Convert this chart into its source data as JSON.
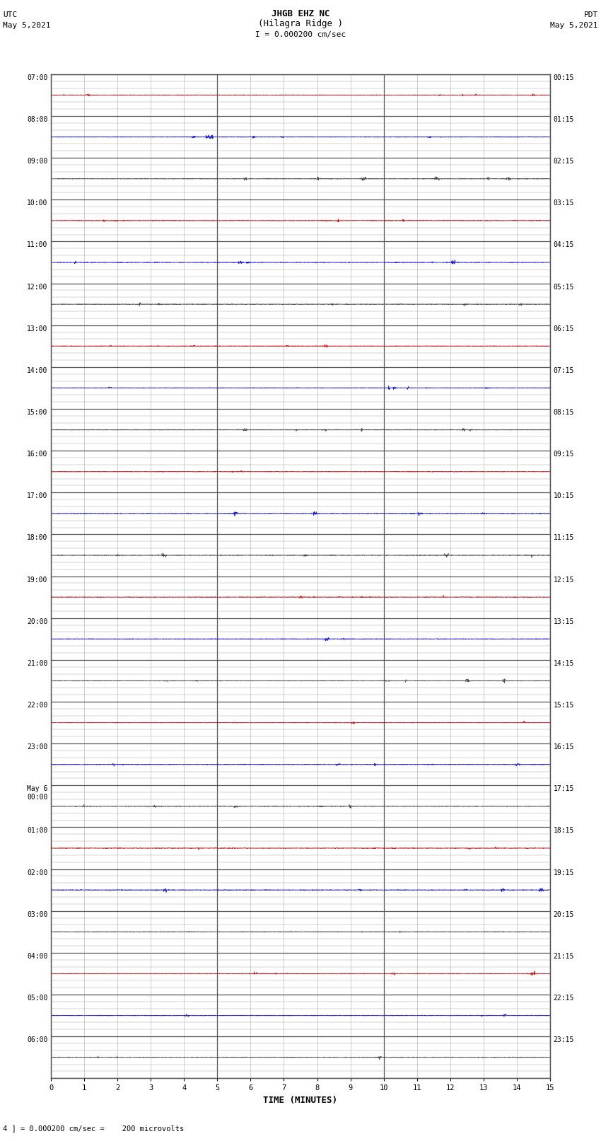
{
  "title_line1": "JHGB EHZ NC",
  "title_line2": "(Hilagra Ridge )",
  "title_line3": "I = 0.000200 cm/sec",
  "left_header_line1": "UTC",
  "left_header_line2": "May 5,2021",
  "right_header_line1": "PDT",
  "right_header_line2": "May 5,2021",
  "xlabel": "TIME (MINUTES)",
  "footer": "4 ] = 0.000200 cm/sec =    200 microvolts",
  "utc_labels": [
    "07:00",
    "08:00",
    "09:00",
    "10:00",
    "11:00",
    "12:00",
    "13:00",
    "14:00",
    "15:00",
    "16:00",
    "17:00",
    "18:00",
    "19:00",
    "20:00",
    "21:00",
    "22:00",
    "23:00",
    "May 6\n00:00",
    "01:00",
    "02:00",
    "03:00",
    "04:00",
    "05:00",
    "06:00"
  ],
  "pdt_labels": [
    "00:15",
    "01:15",
    "02:15",
    "03:15",
    "04:15",
    "05:15",
    "06:15",
    "07:15",
    "08:15",
    "09:15",
    "10:15",
    "11:15",
    "12:15",
    "13:15",
    "14:15",
    "15:15",
    "16:15",
    "17:15",
    "18:15",
    "19:15",
    "20:15",
    "21:15",
    "22:15",
    "23:15"
  ],
  "num_rows": 24,
  "minutes_per_row": 15,
  "bg_color": "#ffffff",
  "grid_color_major": "#555555",
  "grid_color_minor": "#aaaaaa",
  "trace_colors": [
    "#cc0000",
    "#0000cc",
    "#008800"
  ],
  "noise_amplitude": 0.012,
  "sub_divisions": 6,
  "seed": 42
}
